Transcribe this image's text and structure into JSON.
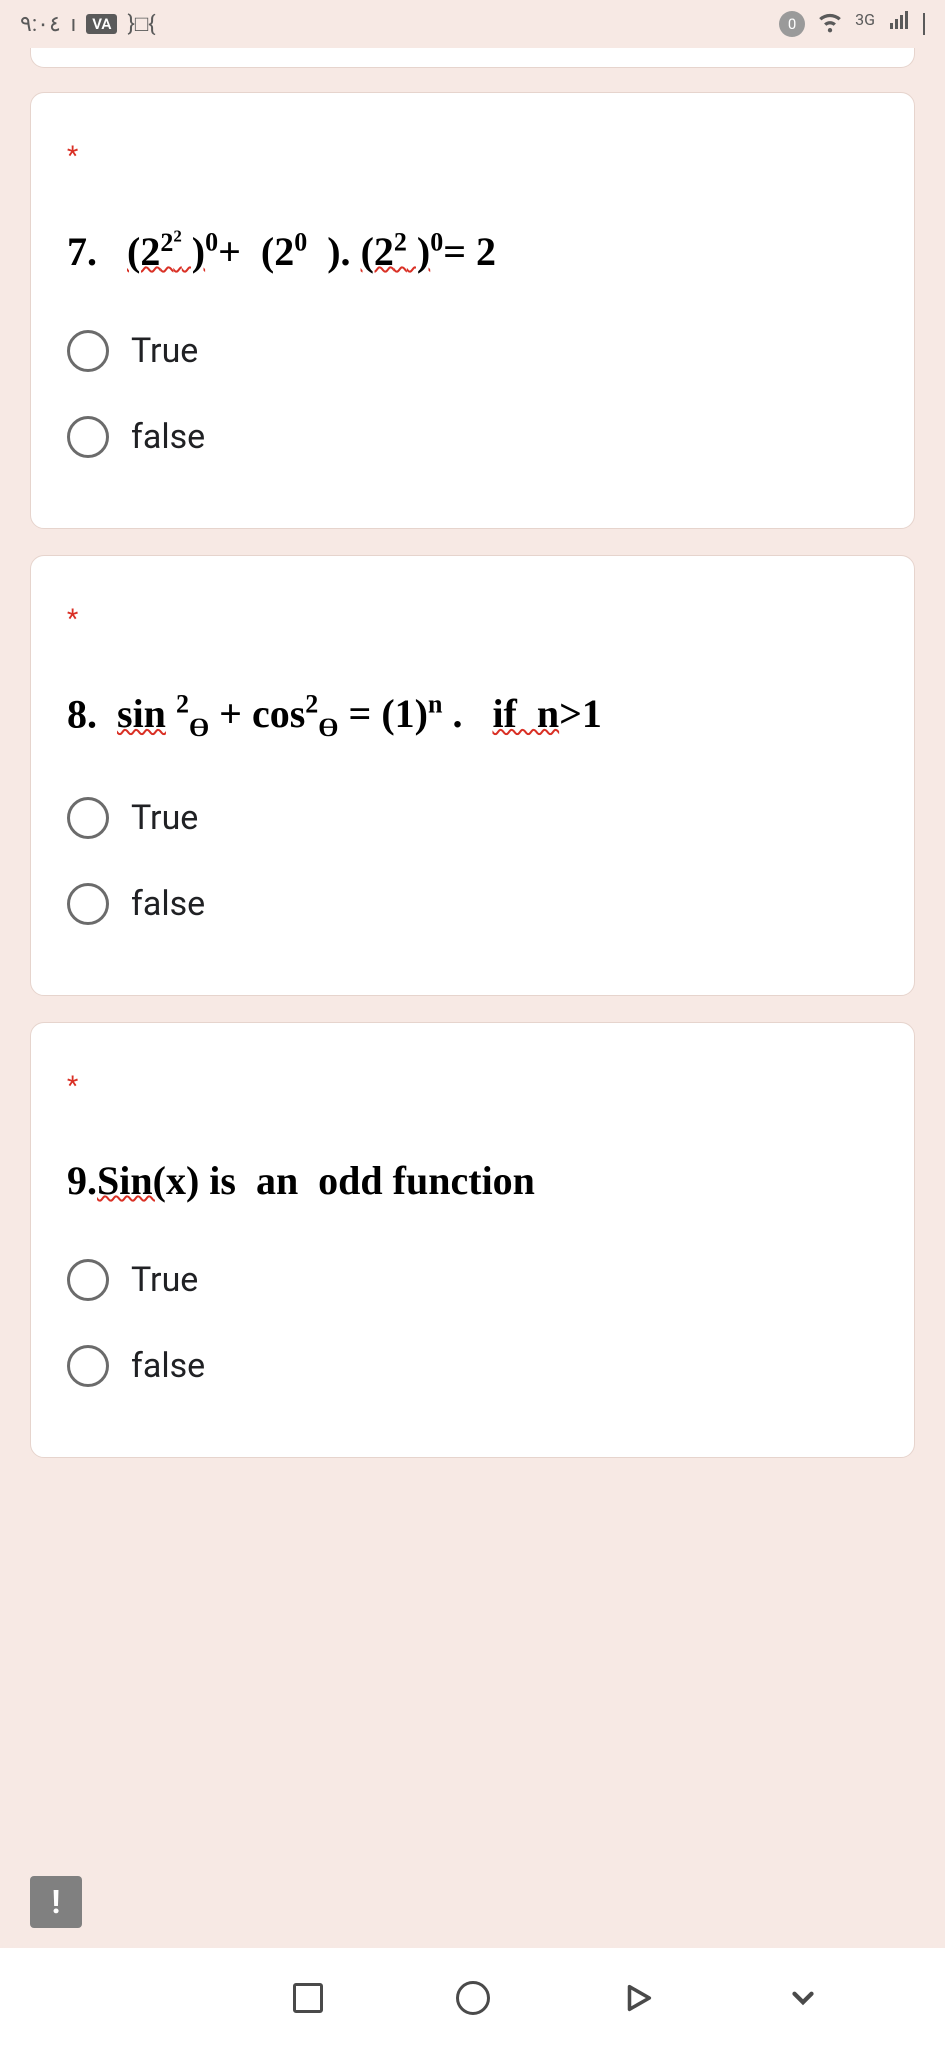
{
  "status_bar": {
    "time": "٩:٠٤",
    "va_label": "VA",
    "app_count": "}□{",
    "zero": "0",
    "net_label": "3G"
  },
  "questions": [
    {
      "required": "*",
      "number": "7.",
      "html": "<span class='ul-red'>(2<sup>2<sup>2</sup></sup> )</span><sup>0</sup>+&nbsp;&nbsp;(2<sup>0</sup>&nbsp;&nbsp;). <span class='ul-red'>(2<sup>2</sup> )</span><sup>0</sup>= 2",
      "options": [
        "True",
        "false"
      ]
    },
    {
      "required": "*",
      "number": "8.",
      "html": "<span class='ul-red'>sin</span> <sup>2</sup><sub>Ө</sub> + cos<sup>2</sup><sub>Ө</sub> = (1)<sup>n</sup> .&nbsp;&nbsp;&nbsp;<span class='ul-red'>if&nbsp; n</span>&gt;1",
      "options": [
        "True",
        "false"
      ]
    },
    {
      "required": "*",
      "number": "9.",
      "html": "<span class='ul-red'>Sin(</span>x) is&nbsp;&nbsp;an&nbsp;&nbsp;odd function",
      "options": [
        "True",
        "false"
      ]
    }
  ],
  "alert": "!"
}
